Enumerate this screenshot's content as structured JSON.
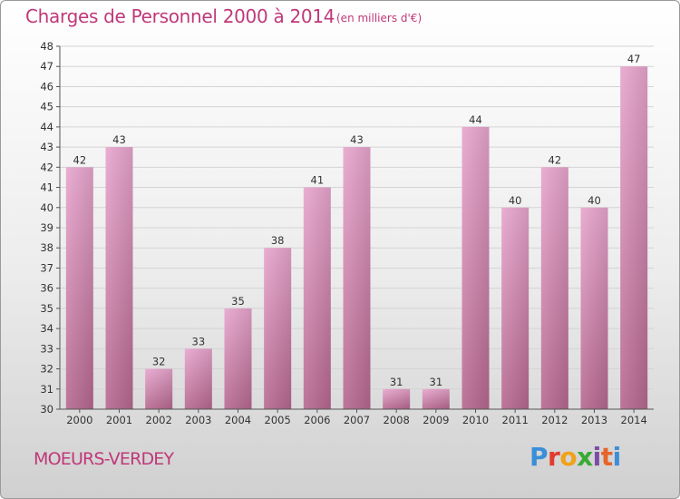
{
  "header": {
    "title": "Charges de Personnel 2000 à 2014",
    "subtitle": "(en milliers d'€)"
  },
  "footer": {
    "place": "MOEURS-VERDEY",
    "logo": "Proxiti",
    "logo_letters": [
      "P",
      "r",
      "o",
      "x",
      "i",
      "t",
      "i"
    ]
  },
  "colors": {
    "bar_top": "#e7a5cd",
    "bar_bottom": "#b5678e",
    "title": "#c0387a",
    "grid": "#d4d4d4"
  },
  "chart_data": {
    "type": "bar",
    "title": "Charges de Personnel 2000 à 2014",
    "subtitle": "(en milliers d'€)",
    "xlabel": "",
    "ylabel": "",
    "categories": [
      "2000",
      "2001",
      "2002",
      "2003",
      "2004",
      "2005",
      "2006",
      "2007",
      "2008",
      "2009",
      "2010",
      "2011",
      "2012",
      "2013",
      "2014"
    ],
    "values": [
      42,
      43,
      32,
      33,
      35,
      38,
      41,
      43,
      31,
      31,
      44,
      40,
      42,
      40,
      47
    ],
    "ylim": [
      30,
      48
    ],
    "yticks": [
      30,
      31,
      32,
      33,
      34,
      35,
      36,
      37,
      38,
      39,
      40,
      41,
      42,
      43,
      44,
      45,
      46,
      47,
      48
    ],
    "grid": true,
    "data_labels": true
  }
}
